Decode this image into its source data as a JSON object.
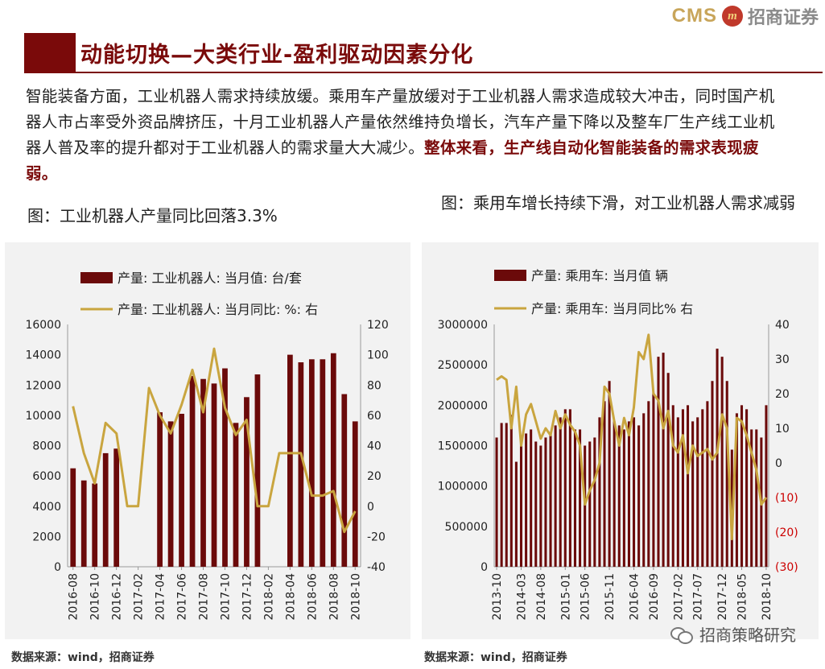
{
  "header": {
    "logo_text": "CMS",
    "logo_badge": "m",
    "logo_cn": "招商证券",
    "title": "动能切换—大类行业-盈利驱动因素分化"
  },
  "intro": {
    "normal": "智能装备方面，工业机器人需求持续放缓。乘用车产量放缓对于工业机器人需求造成较大冲击，同时国产机器人市占率受外资品牌挤压，十月工业机器人产量依然维持负增长，汽车产量下降以及整车厂生产线工业机器人普及率的提升都对于工业机器人的需求量大大减少。",
    "highlight": "整体来看，生产线自动化智能装备的需求表现疲弱。"
  },
  "colors": {
    "bar": "#6b0a0a",
    "line": "#c9a53f",
    "negative_tick": "#cc0000",
    "brand": "#7a0a0a"
  },
  "left": {
    "caption": "图：工业机器人产量同比回落3.3%",
    "source": "数据来源：wind，招商证券"
  },
  "right": {
    "caption": "图：乘用车增长持续下滑，对工业机器人需求减弱",
    "source": "数据来源：wind，招商证券"
  },
  "watermark": {
    "text": "招商策略研究",
    "icon": "wechat-icon"
  },
  "chart_data": [
    {
      "type": "bar+line",
      "title": "图：工业机器人产量同比回落3.3%",
      "legend": [
        "产量: 工业机器人: 当月值: 台/套",
        "产量: 工业机器人: 当月同比: %: 右"
      ],
      "months": [
        "2016-08",
        "2016-09",
        "2016-10",
        "2016-11",
        "2016-12",
        "2017-01",
        "2017-02",
        "2017-03",
        "2017-04",
        "2017-05",
        "2017-06",
        "2017-07",
        "2017-08",
        "2017-09",
        "2017-10",
        "2017-11",
        "2017-12",
        "2018-01",
        "2018-02",
        "2018-03",
        "2018-04",
        "2018-05",
        "2018-06",
        "2018-07",
        "2018-08",
        "2018-09",
        "2018-10"
      ],
      "xticks": [
        "2016-08",
        "2016-10",
        "2016-12",
        "2017-02",
        "2017-04",
        "2017-06",
        "2017-08",
        "2017-10",
        "2017-12",
        "2018-02",
        "2018-04",
        "2018-06",
        "2018-08",
        "2018-10"
      ],
      "yticks_left": [
        "0",
        "2000",
        "4000",
        "6000",
        "8000",
        "10000",
        "12000",
        "14000",
        "16000"
      ],
      "yticks_right": [
        "-40",
        "-20",
        "0",
        "20",
        "40",
        "60",
        "80",
        "100",
        "120"
      ],
      "ylim_left": [
        0,
        16000
      ],
      "ylim_right": [
        -40,
        120
      ],
      "series": [
        {
          "name": "产量: 工业机器人: 当月值: 台/套",
          "axis": "left",
          "values": [
            6500,
            5700,
            5500,
            7500,
            7800,
            null,
            null,
            null,
            10200,
            9600,
            10100,
            12600,
            12400,
            12100,
            13100,
            9500,
            11200,
            12700,
            null,
            null,
            14000,
            13500,
            13700,
            13700,
            14100,
            11400,
            9600
          ]
        },
        {
          "name": "产量: 工业机器人: 当月同比: %: 右",
          "axis": "right",
          "values": [
            66,
            35,
            15,
            55,
            48,
            0,
            0,
            78,
            60,
            48,
            67,
            90,
            62,
            104,
            65,
            47,
            57,
            0,
            0,
            35,
            35,
            35,
            7,
            7,
            10,
            -17,
            -3.3
          ]
        }
      ]
    },
    {
      "type": "bar+line",
      "title": "图：乘用车增长持续下滑，对工业机器人需求减弱",
      "legend": [
        "产量: 乘用车: 当月值 辆",
        "产量: 乘用车: 当月同比% 右"
      ],
      "xticks": [
        "2013-10",
        "2014-03",
        "2014-08",
        "2015-01",
        "2015-06",
        "2015-11",
        "2016-04",
        "2016-09",
        "2017-02",
        "2017-07",
        "2017-12",
        "2018-05",
        "2018-10"
      ],
      "yticks_left": [
        "0",
        "500000",
        "1000000",
        "1500000",
        "2000000",
        "2500000",
        "3000000"
      ],
      "yticks_right": [
        "(30)",
        "(20)",
        "(10)",
        "0",
        "10",
        "20",
        "30",
        "40"
      ],
      "ylim_left": [
        0,
        3000000
      ],
      "ylim_right": [
        -30,
        40
      ],
      "series": [
        {
          "name": "产量: 乘用车: 当月值 辆",
          "axis": "left",
          "values": [
            1600000,
            1780000,
            1780000,
            1880000,
            1300000,
            1600000,
            1650000,
            1700000,
            1550000,
            1500000,
            1600000,
            1650000,
            1750000,
            1850000,
            1950000,
            1950000,
            1700000,
            1700000,
            1500000,
            1550000,
            1600000,
            1850000,
            2050000,
            2300000,
            1800000,
            1750000,
            1700000,
            1800000,
            1850000,
            1750000,
            1900000,
            2050000,
            2150000,
            2600000,
            2650000,
            2400000,
            2000000,
            1850000,
            1950000,
            2000000,
            1800000,
            1850000,
            1950000,
            2050000,
            2300000,
            2700000,
            2600000,
            2300000,
            1450000,
            1900000,
            2000000,
            1950000,
            1700000,
            1700000,
            1600000,
            2000000
          ]
        },
        {
          "name": "产量: 乘用车: 当月同比% 右",
          "axis": "right",
          "values": [
            24,
            25,
            24,
            10,
            22,
            5,
            14,
            17,
            12,
            7,
            10,
            8,
            15,
            10,
            14,
            11,
            9,
            5,
            -12,
            -8,
            -5,
            0,
            22,
            20,
            12,
            5,
            13,
            8,
            16,
            32,
            30,
            37,
            20,
            18,
            10,
            15,
            5,
            3,
            8,
            -3,
            5,
            2,
            3,
            4,
            1,
            3,
            14,
            10,
            -22,
            13,
            12,
            8,
            3,
            -2,
            -12,
            -10
          ]
        }
      ]
    }
  ]
}
